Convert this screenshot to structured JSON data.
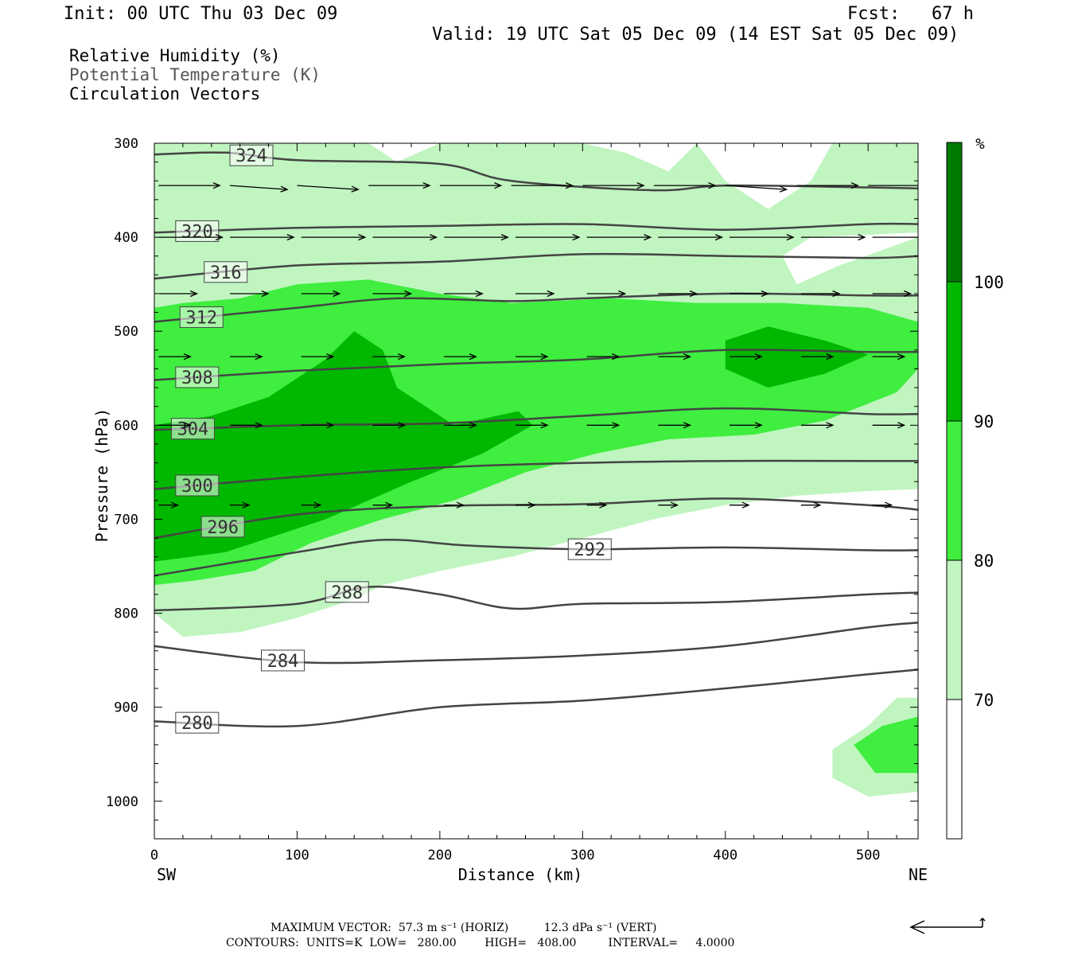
{
  "header": {
    "init": "Init: 00 UTC Thu 03 Dec 09",
    "fcst": "Fcst:   67 h",
    "valid": "Valid: 19 UTC Sat 05 Dec 09 (14 EST Sat 05 Dec 09)",
    "fields": [
      "Relative Humidity (%)",
      "Potential Temperature (K)",
      "Circulation Vectors"
    ]
  },
  "footer": {
    "max_vector": "MAXIMUM VECTOR:  57.3 m s⁻¹ (HORIZ)          12.3 dPa s⁻¹ (VERT)",
    "contours": "CONTOURS:  UNITS=K  LOW=   280.00        HIGH=   408.00         INTERVAL=     4.0000"
  },
  "colors": {
    "rh_70_80": "#c0f5c0",
    "rh_80_90": "#3fee3f",
    "rh_90_100": "#00b800",
    "rh_100": "#007a00",
    "theta_line": "#444444"
  },
  "chart_data": {
    "type": "cross-section",
    "xlabel": "Distance (km)",
    "ylabel": "Pressure (hPa)",
    "xlim": [
      0,
      535
    ],
    "ylim": [
      1040,
      300
    ],
    "x_ticks": [
      "0",
      "100",
      "200",
      "300",
      "400",
      "500"
    ],
    "y_ticks": [
      "300",
      "400",
      "500",
      "600",
      "700",
      "800",
      "900",
      "1000"
    ],
    "x_end_labels": {
      "left": "SW",
      "right": "NE"
    },
    "colorbar": {
      "unit": "%",
      "levels": [
        "70",
        "80",
        "90",
        "100"
      ]
    },
    "rh_shading": {
      "rh_70_80": [
        [
          0,
          800
        ],
        [
          20,
          825
        ],
        [
          60,
          820
        ],
        [
          100,
          805
        ],
        [
          140,
          785
        ],
        [
          160,
          770
        ],
        [
          200,
          755
        ],
        [
          250,
          740
        ],
        [
          300,
          720
        ],
        [
          350,
          700
        ],
        [
          400,
          685
        ],
        [
          450,
          675
        ],
        [
          500,
          670
        ],
        [
          535,
          668
        ],
        [
          535,
          400
        ],
        [
          480,
          430
        ],
        [
          450,
          450
        ],
        [
          440,
          420
        ],
        [
          460,
          400
        ],
        [
          535,
          395
        ],
        [
          535,
          300
        ],
        [
          475,
          300
        ],
        [
          460,
          340
        ],
        [
          430,
          370
        ],
        [
          400,
          340
        ],
        [
          380,
          300
        ],
        [
          360,
          330
        ],
        [
          330,
          310
        ],
        [
          300,
          300
        ],
        [
          200,
          300
        ],
        [
          170,
          320
        ],
        [
          150,
          300
        ],
        [
          0,
          300
        ]
      ],
      "rh_80_90": [
        [
          0,
          770
        ],
        [
          30,
          765
        ],
        [
          70,
          755
        ],
        [
          110,
          725
        ],
        [
          160,
          700
        ],
        [
          210,
          680
        ],
        [
          260,
          650
        ],
        [
          310,
          630
        ],
        [
          360,
          615
        ],
        [
          420,
          610
        ],
        [
          470,
          595
        ],
        [
          520,
          565
        ],
        [
          535,
          540
        ],
        [
          535,
          490
        ],
        [
          500,
          475
        ],
        [
          440,
          470
        ],
        [
          380,
          470
        ],
        [
          320,
          465
        ],
        [
          250,
          470
        ],
        [
          200,
          460
        ],
        [
          150,
          445
        ],
        [
          100,
          450
        ],
        [
          60,
          465
        ],
        [
          20,
          470
        ],
        [
          0,
          475
        ]
      ],
      "rh_90_100": [
        [
          0,
          745
        ],
        [
          50,
          735
        ],
        [
          120,
          700
        ],
        [
          180,
          660
        ],
        [
          230,
          630
        ],
        [
          265,
          600
        ],
        [
          255,
          585
        ],
        [
          210,
          600
        ],
        [
          170,
          560
        ],
        [
          160,
          520
        ],
        [
          140,
          500
        ],
        [
          120,
          530
        ],
        [
          80,
          570
        ],
        [
          40,
          590
        ],
        [
          0,
          600
        ]
      ],
      "rh_90_100_ne": [
        [
          400,
          510
        ],
        [
          430,
          495
        ],
        [
          470,
          510
        ],
        [
          500,
          525
        ],
        [
          470,
          545
        ],
        [
          430,
          560
        ],
        [
          400,
          540
        ]
      ],
      "rh_70_80_sfc": [
        [
          475,
          945
        ],
        [
          500,
          920
        ],
        [
          520,
          890
        ],
        [
          535,
          890
        ],
        [
          535,
          990
        ],
        [
          500,
          995
        ],
        [
          475,
          975
        ]
      ],
      "rh_80_90_sfc": [
        [
          490,
          940
        ],
        [
          510,
          920
        ],
        [
          535,
          910
        ],
        [
          535,
          970
        ],
        [
          505,
          970
        ]
      ]
    },
    "theta_contours": [
      {
        "level": "280",
        "label_x": 30,
        "points": [
          [
            0,
            915
          ],
          [
            100,
            920
          ],
          [
            200,
            900
          ],
          [
            300,
            893
          ],
          [
            400,
            880
          ],
          [
            500,
            865
          ],
          [
            535,
            860
          ]
        ]
      },
      {
        "level": "284",
        "label_x": 90,
        "points": [
          [
            0,
            835
          ],
          [
            100,
            852
          ],
          [
            200,
            850
          ],
          [
            300,
            845
          ],
          [
            400,
            835
          ],
          [
            500,
            815
          ],
          [
            535,
            810
          ]
        ]
      },
      {
        "level": "288",
        "label_x": 135,
        "points": [
          [
            0,
            797
          ],
          [
            100,
            790
          ],
          [
            150,
            772
          ],
          [
            200,
            780
          ],
          [
            250,
            795
          ],
          [
            300,
            790
          ],
          [
            400,
            788
          ],
          [
            500,
            780
          ],
          [
            535,
            778
          ]
        ]
      },
      {
        "level": "292",
        "label_x": 305,
        "points": [
          [
            0,
            760
          ],
          [
            100,
            735
          ],
          [
            160,
            722
          ],
          [
            220,
            728
          ],
          [
            300,
            732
          ],
          [
            400,
            730
          ],
          [
            500,
            733
          ],
          [
            535,
            733
          ]
        ]
      },
      {
        "level": "296",
        "label_x": 48,
        "points": [
          [
            0,
            720
          ],
          [
            100,
            695
          ],
          [
            200,
            686
          ],
          [
            300,
            684
          ],
          [
            400,
            678
          ],
          [
            500,
            685
          ],
          [
            535,
            690
          ]
        ]
      },
      {
        "level": "300",
        "label_x": 30,
        "points": [
          [
            0,
            668
          ],
          [
            100,
            655
          ],
          [
            200,
            645
          ],
          [
            300,
            640
          ],
          [
            400,
            638
          ],
          [
            500,
            638
          ],
          [
            535,
            638
          ]
        ]
      },
      {
        "level": "304",
        "label_x": 27,
        "points": [
          [
            0,
            605
          ],
          [
            100,
            600
          ],
          [
            200,
            598
          ],
          [
            300,
            590
          ],
          [
            400,
            582
          ],
          [
            500,
            588
          ],
          [
            535,
            588
          ]
        ]
      },
      {
        "level": "308",
        "label_x": 30,
        "points": [
          [
            0,
            552
          ],
          [
            100,
            542
          ],
          [
            200,
            535
          ],
          [
            300,
            530
          ],
          [
            400,
            520
          ],
          [
            500,
            522
          ],
          [
            535,
            522
          ]
        ]
      },
      {
        "level": "312",
        "label_x": 33,
        "points": [
          [
            0,
            490
          ],
          [
            100,
            475
          ],
          [
            170,
            465
          ],
          [
            250,
            468
          ],
          [
            300,
            465
          ],
          [
            400,
            460
          ],
          [
            500,
            462
          ],
          [
            535,
            462
          ]
        ]
      },
      {
        "level": "316",
        "label_x": 50,
        "points": [
          [
            0,
            444
          ],
          [
            100,
            430
          ],
          [
            200,
            426
          ],
          [
            300,
            418
          ],
          [
            400,
            420
          ],
          [
            500,
            422
          ],
          [
            535,
            420
          ]
        ]
      },
      {
        "level": "320",
        "label_x": 30,
        "points": [
          [
            0,
            395
          ],
          [
            100,
            390
          ],
          [
            200,
            388
          ],
          [
            300,
            386
          ],
          [
            400,
            392
          ],
          [
            500,
            386
          ],
          [
            535,
            386
          ]
        ]
      },
      {
        "level": "324",
        "label_x": 68,
        "points": [
          [
            0,
            312
          ],
          [
            50,
            310
          ],
          [
            100,
            318
          ],
          [
            200,
            322
          ],
          [
            250,
            340
          ],
          [
            350,
            350
          ],
          [
            400,
            345
          ],
          [
            500,
            347
          ],
          [
            535,
            348
          ]
        ]
      }
    ],
    "vectors": [
      {
        "x": 3,
        "p": 345,
        "u": 48,
        "w": 0
      },
      {
        "x": 53,
        "p": 345,
        "u": 45,
        "w": 5
      },
      {
        "x": 100,
        "p": 345,
        "u": 48,
        "w": 5
      },
      {
        "x": 150,
        "p": 345,
        "u": 48,
        "w": 0
      },
      {
        "x": 200,
        "p": 345,
        "u": 48,
        "w": 0
      },
      {
        "x": 250,
        "p": 345,
        "u": 48,
        "w": 0
      },
      {
        "x": 300,
        "p": 345,
        "u": 48,
        "w": 0
      },
      {
        "x": 350,
        "p": 345,
        "u": 48,
        "w": 0
      },
      {
        "x": 400,
        "p": 345,
        "u": 48,
        "w": 5
      },
      {
        "x": 450,
        "p": 345,
        "u": 48,
        "w": 0
      },
      {
        "x": 500,
        "p": 345,
        "u": 48,
        "w": 0
      },
      {
        "x": 3,
        "p": 400,
        "u": 50,
        "w": 0
      },
      {
        "x": 53,
        "p": 400,
        "u": 50,
        "w": 0
      },
      {
        "x": 103,
        "p": 400,
        "u": 50,
        "w": 0
      },
      {
        "x": 153,
        "p": 400,
        "u": 50,
        "w": 0
      },
      {
        "x": 203,
        "p": 400,
        "u": 50,
        "w": 0
      },
      {
        "x": 253,
        "p": 400,
        "u": 50,
        "w": 0
      },
      {
        "x": 303,
        "p": 400,
        "u": 50,
        "w": 0
      },
      {
        "x": 353,
        "p": 400,
        "u": 50,
        "w": 0
      },
      {
        "x": 403,
        "p": 400,
        "u": 50,
        "w": 0
      },
      {
        "x": 453,
        "p": 400,
        "u": 50,
        "w": 0
      },
      {
        "x": 503,
        "p": 400,
        "u": 50,
        "w": 0
      },
      {
        "x": 3,
        "p": 460,
        "u": 30,
        "w": 0
      },
      {
        "x": 53,
        "p": 460,
        "u": 30,
        "w": 0
      },
      {
        "x": 103,
        "p": 460,
        "u": 30,
        "w": 0
      },
      {
        "x": 153,
        "p": 460,
        "u": 30,
        "w": 0
      },
      {
        "x": 203,
        "p": 460,
        "u": 30,
        "w": 0
      },
      {
        "x": 253,
        "p": 460,
        "u": 30,
        "w": 0
      },
      {
        "x": 303,
        "p": 460,
        "u": 30,
        "w": 0
      },
      {
        "x": 353,
        "p": 460,
        "u": 30,
        "w": 0
      },
      {
        "x": 403,
        "p": 460,
        "u": 30,
        "w": 0
      },
      {
        "x": 453,
        "p": 460,
        "u": 30,
        "w": 0
      },
      {
        "x": 503,
        "p": 460,
        "u": 30,
        "w": 0
      },
      {
        "x": 3,
        "p": 527,
        "u": 25,
        "w": 0
      },
      {
        "x": 53,
        "p": 527,
        "u": 25,
        "w": 0
      },
      {
        "x": 103,
        "p": 527,
        "u": 25,
        "w": 0
      },
      {
        "x": 153,
        "p": 527,
        "u": 25,
        "w": 0
      },
      {
        "x": 203,
        "p": 527,
        "u": 25,
        "w": 0
      },
      {
        "x": 253,
        "p": 527,
        "u": 25,
        "w": 0
      },
      {
        "x": 303,
        "p": 527,
        "u": 25,
        "w": 0
      },
      {
        "x": 353,
        "p": 527,
        "u": 25,
        "w": 0
      },
      {
        "x": 403,
        "p": 527,
        "u": 25,
        "w": 0
      },
      {
        "x": 453,
        "p": 527,
        "u": 25,
        "w": 0
      },
      {
        "x": 503,
        "p": 527,
        "u": 25,
        "w": 0
      },
      {
        "x": 3,
        "p": 600,
        "u": 25,
        "w": 0
      },
      {
        "x": 53,
        "p": 600,
        "u": 25,
        "w": 0
      },
      {
        "x": 103,
        "p": 600,
        "u": 25,
        "w": 0
      },
      {
        "x": 153,
        "p": 600,
        "u": 25,
        "w": 0
      },
      {
        "x": 203,
        "p": 600,
        "u": 25,
        "w": 0
      },
      {
        "x": 253,
        "p": 600,
        "u": 25,
        "w": 0
      },
      {
        "x": 303,
        "p": 600,
        "u": 25,
        "w": 0
      },
      {
        "x": 353,
        "p": 600,
        "u": 25,
        "w": 0
      },
      {
        "x": 403,
        "p": 600,
        "u": 25,
        "w": 0
      },
      {
        "x": 453,
        "p": 600,
        "u": 25,
        "w": 0
      },
      {
        "x": 503,
        "p": 600,
        "u": 25,
        "w": 0
      },
      {
        "x": 3,
        "p": 685,
        "u": 15,
        "w": 0
      },
      {
        "x": 53,
        "p": 685,
        "u": 15,
        "w": 0
      },
      {
        "x": 103,
        "p": 685,
        "u": 15,
        "w": 0
      },
      {
        "x": 153,
        "p": 685,
        "u": 15,
        "w": 0
      },
      {
        "x": 203,
        "p": 685,
        "u": 15,
        "w": 0
      },
      {
        "x": 253,
        "p": 685,
        "u": 15,
        "w": 0
      },
      {
        "x": 303,
        "p": 685,
        "u": 15,
        "w": 0
      },
      {
        "x": 353,
        "p": 685,
        "u": 15,
        "w": 0
      },
      {
        "x": 403,
        "p": 685,
        "u": 15,
        "w": 0
      },
      {
        "x": 453,
        "p": 685,
        "u": 15,
        "w": 0
      },
      {
        "x": 503,
        "p": 685,
        "u": 15,
        "w": 0
      }
    ]
  }
}
